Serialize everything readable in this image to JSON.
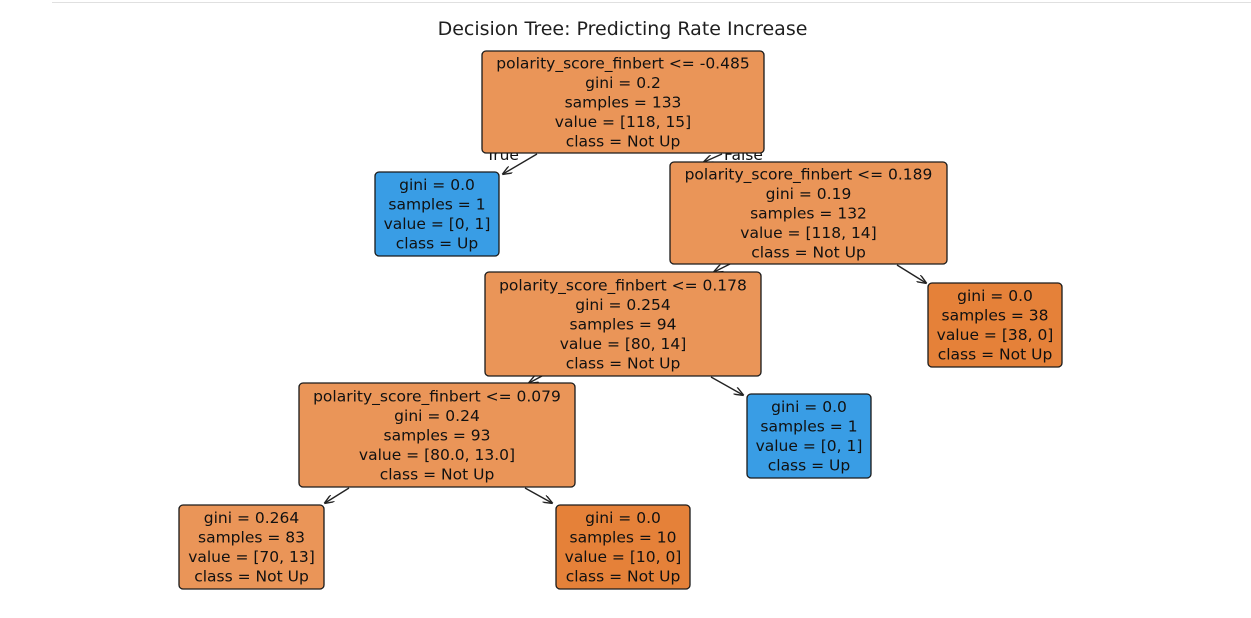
{
  "title": "Decision Tree: Predicting Rate Increase",
  "colors": {
    "orange_strong": "#e58139",
    "orange_light": "#ea9558",
    "blue": "#399de5",
    "edge": "#222222"
  },
  "edge_labels": {
    "left": "True",
    "right": "False"
  },
  "nodes": [
    {
      "id": "n0",
      "lines": [
        "polarity_score_finbert <= -0.485",
        "gini = 0.2",
        "samples = 133",
        "value = [118, 15]",
        "class = Not Up"
      ],
      "fill": "orange_light"
    },
    {
      "id": "n1",
      "lines": [
        "gini = 0.0",
        "samples = 1",
        "value = [0, 1]",
        "class = Up"
      ],
      "fill": "blue"
    },
    {
      "id": "n2",
      "lines": [
        "polarity_score_finbert <= 0.189",
        "gini = 0.19",
        "samples = 132",
        "value = [118, 14]",
        "class = Not Up"
      ],
      "fill": "orange_light"
    },
    {
      "id": "n3",
      "lines": [
        "polarity_score_finbert <= 0.178",
        "gini = 0.254",
        "samples = 94",
        "value = [80, 14]",
        "class = Not Up"
      ],
      "fill": "orange_light"
    },
    {
      "id": "n4",
      "lines": [
        "gini = 0.0",
        "samples = 38",
        "value = [38, 0]",
        "class = Not Up"
      ],
      "fill": "orange_strong"
    },
    {
      "id": "n5",
      "lines": [
        "polarity_score_finbert <= 0.079",
        "gini = 0.24",
        "samples = 93",
        "value = [80.0, 13.0]",
        "class = Not Up"
      ],
      "fill": "orange_light"
    },
    {
      "id": "n6",
      "lines": [
        "gini = 0.0",
        "samples = 1",
        "value = [0, 1]",
        "class = Up"
      ],
      "fill": "blue"
    },
    {
      "id": "n7",
      "lines": [
        "gini = 0.264",
        "samples = 83",
        "value = [70, 13]",
        "class = Not Up"
      ],
      "fill": "orange_light"
    },
    {
      "id": "n8",
      "lines": [
        "gini = 0.0",
        "samples = 10",
        "value = [10, 0]",
        "class = Not Up"
      ],
      "fill": "orange_strong"
    }
  ],
  "edges": [
    {
      "from": "n0",
      "to": "n1"
    },
    {
      "from": "n0",
      "to": "n2"
    },
    {
      "from": "n2",
      "to": "n3"
    },
    {
      "from": "n2",
      "to": "n4"
    },
    {
      "from": "n3",
      "to": "n5"
    },
    {
      "from": "n3",
      "to": "n6"
    },
    {
      "from": "n5",
      "to": "n7"
    },
    {
      "from": "n5",
      "to": "n8"
    }
  ]
}
